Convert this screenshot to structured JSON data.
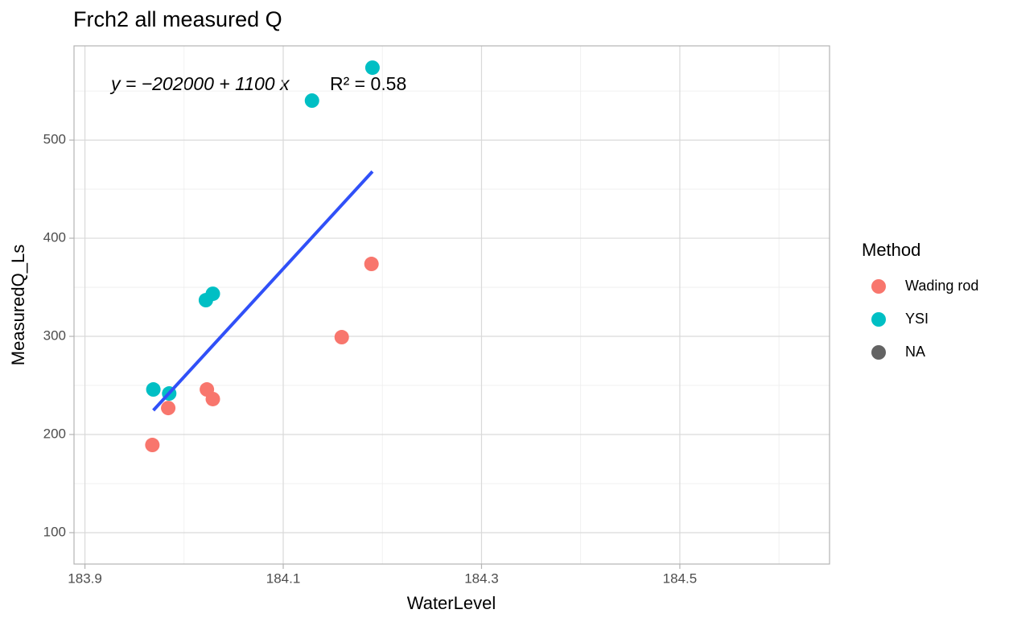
{
  "chart_data": {
    "type": "scatter",
    "title": "Frch2 all measured Q",
    "x_label": "WaterLevel",
    "y_label": "MeasuredQ_Ls",
    "annotation": {
      "equation": "y = −202000 + 1100 x",
      "r_squared": "R² = 0.58"
    },
    "legend_title": "Method",
    "legend_position": "right",
    "xlim": [
      183.889,
      184.651
    ],
    "ylim": [
      68,
      596
    ],
    "xticks": [
      183.9,
      184.1,
      184.3,
      184.5
    ],
    "yticks": [
      100,
      200,
      300,
      400,
      500
    ],
    "xminor": [
      184.0,
      184.2,
      184.4,
      184.6
    ],
    "yminor": [
      150,
      250,
      350,
      450,
      550
    ],
    "grid": true,
    "series": [
      {
        "name": "Wading rod",
        "color": "#f8766d",
        "x": [
          183.968,
          183.984,
          184.023,
          184.029,
          184.159,
          184.189
        ],
        "values": [
          189.3,
          227.0,
          245.9,
          236.1,
          299.2,
          373.8
        ]
      },
      {
        "name": "YSI",
        "color": "#00bfc4",
        "x": [
          183.969,
          183.985,
          184.022,
          184.029,
          184.129,
          184.19
        ],
        "values": [
          245.9,
          241.8,
          336.9,
          343.4,
          540.2,
          573.8
        ]
      },
      {
        "name": "NA",
        "color": "#636363",
        "x": [],
        "values": []
      }
    ],
    "fit_line": {
      "color": "#3050f8",
      "x": [
        183.969,
        184.19
      ],
      "values": [
        224.6,
        468.0
      ]
    }
  }
}
